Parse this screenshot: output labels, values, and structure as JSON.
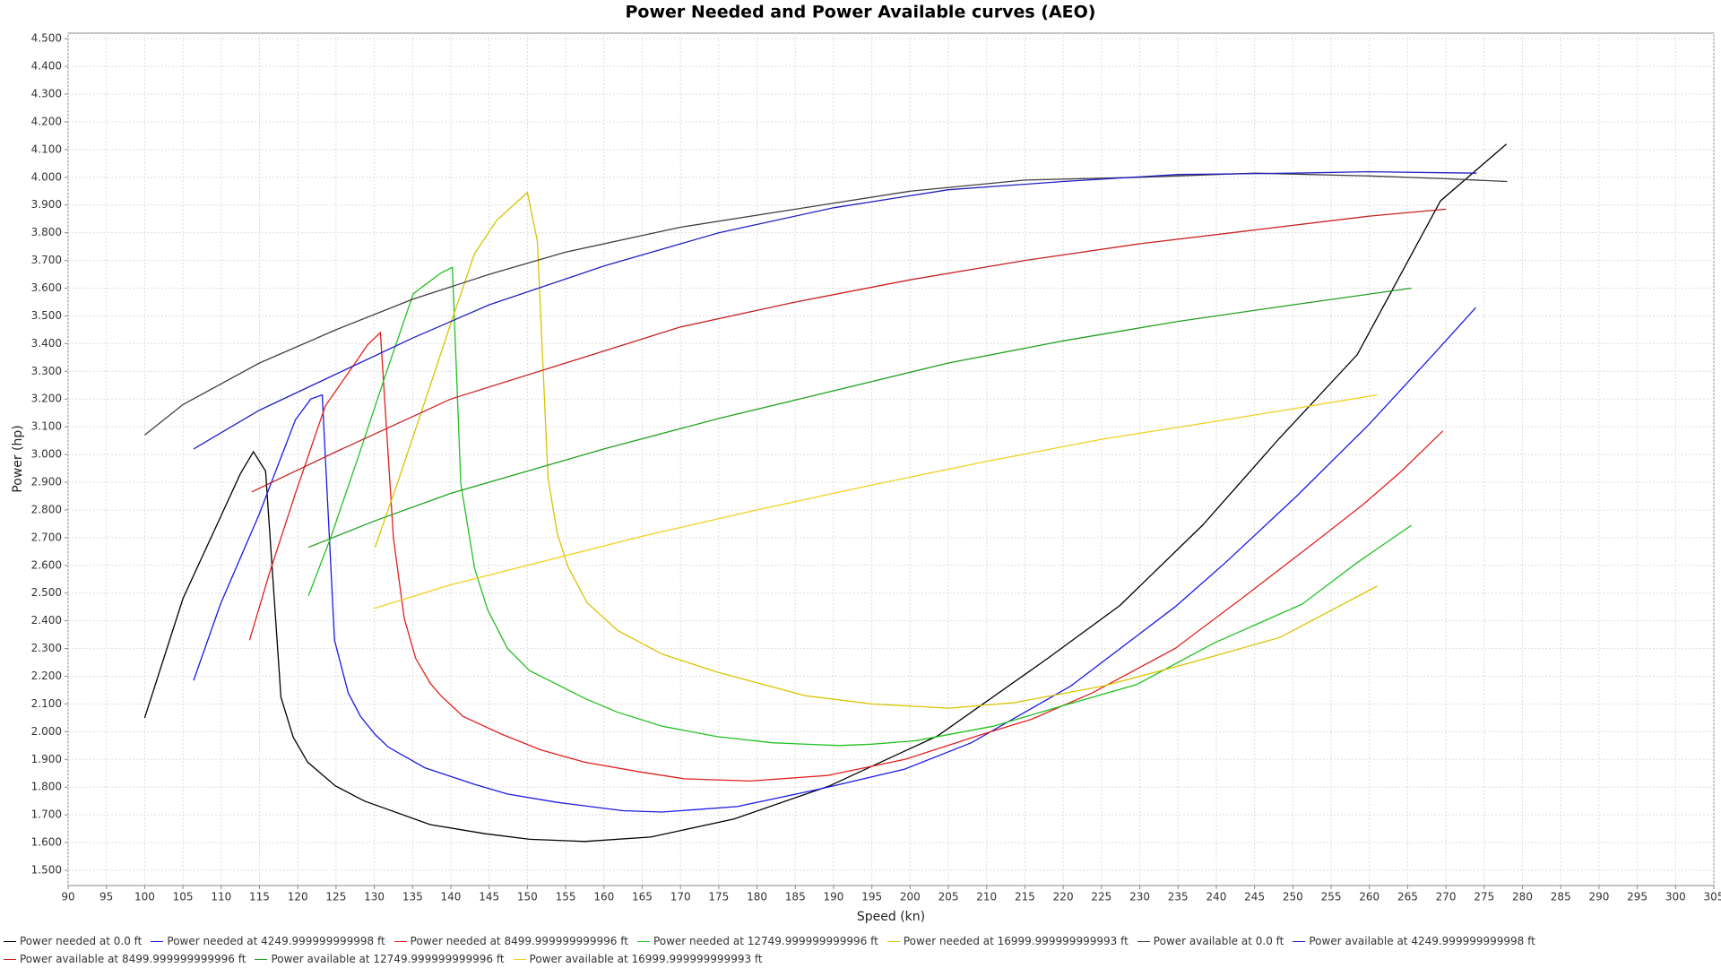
{
  "chart_data": {
    "type": "line",
    "title": "Power Needed and Power Available curves (AEO)",
    "x_label": "Speed (kn)",
    "y_label": "Power (hp)",
    "xlim": [
      90,
      305
    ],
    "ylim": [
      1445,
      4520
    ],
    "xticks": [
      90,
      95,
      100,
      105,
      110,
      115,
      120,
      125,
      130,
      135,
      140,
      145,
      150,
      155,
      160,
      165,
      170,
      175,
      180,
      185,
      190,
      195,
      200,
      205,
      210,
      215,
      220,
      225,
      230,
      235,
      240,
      245,
      250,
      255,
      260,
      265,
      270,
      275,
      280,
      285,
      290,
      295,
      300,
      305
    ],
    "yticks": [
      {
        "value": 1500,
        "label": "1.500"
      },
      {
        "value": 1600,
        "label": "1.600"
      },
      {
        "value": 1700,
        "label": "1.700"
      },
      {
        "value": 1800,
        "label": "1.800"
      },
      {
        "value": 1900,
        "label": "1.900"
      },
      {
        "value": 2000,
        "label": "2.000"
      },
      {
        "value": 2100,
        "label": "2.100"
      },
      {
        "value": 2200,
        "label": "2.200"
      },
      {
        "value": 2300,
        "label": "2.300"
      },
      {
        "value": 2400,
        "label": "2.400"
      },
      {
        "value": 2500,
        "label": "2.500"
      },
      {
        "value": 2600,
        "label": "2.600"
      },
      {
        "value": 2700,
        "label": "2.700"
      },
      {
        "value": 2800,
        "label": "2.800"
      },
      {
        "value": 2900,
        "label": "2.900"
      },
      {
        "value": 3000,
        "label": "3.000"
      },
      {
        "value": 3100,
        "label": "3.100"
      },
      {
        "value": 3200,
        "label": "3.200"
      },
      {
        "value": 3300,
        "label": "3.300"
      },
      {
        "value": 3400,
        "label": "3.400"
      },
      {
        "value": 3500,
        "label": "3.500"
      },
      {
        "value": 3600,
        "label": "3.600"
      },
      {
        "value": 3700,
        "label": "3.700"
      },
      {
        "value": 3800,
        "label": "3.800"
      },
      {
        "value": 3900,
        "label": "3.900"
      },
      {
        "value": 4000,
        "label": "4.000"
      },
      {
        "value": 4100,
        "label": "4.100"
      },
      {
        "value": 4200,
        "label": "4.200"
      },
      {
        "value": 4300,
        "label": "4.300"
      },
      {
        "value": 4400,
        "label": "4.400"
      },
      {
        "value": 4500,
        "label": "4.500"
      }
    ],
    "grid": true,
    "legend": "bottom",
    "series": [
      {
        "name": "Power needed at 0.0 ft",
        "color": "#000000",
        "x": [
          100,
          105,
          110,
          112.5,
          114.2,
          115.8,
          117.8,
          119.4,
          121.3,
          124.9,
          128.7,
          137.3,
          144.5,
          150.3,
          157.5,
          166.1,
          177,
          189.5,
          203.6,
          218,
          227.4,
          238.2,
          248.3,
          258.4,
          269.3,
          277.9
        ],
        "values": [
          2050,
          2480,
          2780,
          2930,
          3010,
          2940,
          2125,
          1980,
          1890,
          1805,
          1750,
          1665,
          1632,
          1612,
          1604,
          1620,
          1685,
          1805,
          1985,
          2265,
          2455,
          2745,
          3060,
          3360,
          3915,
          4120
        ]
      },
      {
        "name": "Power needed at 4249.999999999998 ft",
        "color": "#1a1ae6",
        "x": [
          106.4,
          109.9,
          114.9,
          119.7,
          121.7,
          123.2,
          124.8,
          126.6,
          128.2,
          130.1,
          131.8,
          136.6,
          143.1,
          147.4,
          153.9,
          162.5,
          167.6,
          177.4,
          188.5,
          199.3,
          208,
          221,
          234.6,
          241.2,
          250.5,
          260,
          268.5,
          273.9
        ],
        "values": [
          2185,
          2460,
          2780,
          3125,
          3200,
          3215,
          2330,
          2140,
          2055,
          1990,
          1945,
          1870,
          1810,
          1775,
          1745,
          1715,
          1710,
          1730,
          1795,
          1865,
          1960,
          2165,
          2450,
          2610,
          2850,
          3110,
          3365,
          3530
        ]
      },
      {
        "name": "Power needed at 8499.999999999996 ft",
        "color": "#e02020",
        "x": [
          113.7,
          116.4,
          119.7,
          123.6,
          127.5,
          129.1,
          130.8,
          132.5,
          133.9,
          135.4,
          137.3,
          138.7,
          141.6,
          146.7,
          151.7,
          157.5,
          164.7,
          170.5,
          179.1,
          189.2,
          199.3,
          209.4,
          215.9,
          223.8,
          234.6,
          243.3,
          252.7,
          259.2,
          264.2,
          269.6
        ],
        "values": [
          2330,
          2580,
          2860,
          3175,
          3330,
          3395,
          3440,
          2700,
          2410,
          2265,
          2175,
          2130,
          2055,
          1990,
          1935,
          1890,
          1855,
          1830,
          1822,
          1842,
          1900,
          1990,
          2045,
          2140,
          2300,
          2480,
          2680,
          2820,
          2940,
          3085
        ]
      },
      {
        "name": "Power needed at 12749.999999999996 ft",
        "color": "#22c022",
        "x": [
          121.4,
          124.3,
          127.9,
          131.5,
          135.1,
          138.7,
          140.2,
          141.3,
          143.1,
          144.8,
          147.4,
          150.3,
          153.2,
          157.5,
          161.8,
          167.6,
          174.8,
          182,
          190.7,
          195,
          200.8,
          210.9,
          219.5,
          229.6,
          239.7,
          251.2,
          258.4,
          265.5
        ],
        "values": [
          2490,
          2700,
          2990,
          3290,
          3580,
          3655,
          3675,
          2895,
          2590,
          2440,
          2300,
          2220,
          2180,
          2120,
          2070,
          2020,
          1982,
          1960,
          1950,
          1955,
          1968,
          2020,
          2090,
          2170,
          2320,
          2460,
          2610,
          2745
        ]
      },
      {
        "name": "Power needed at 16999.999999999993 ft",
        "color": "#d9c400",
        "x": [
          130.1,
          133,
          136.6,
          140.2,
          143.1,
          146,
          148.8,
          150,
          151.3,
          152.7,
          153.9,
          155.3,
          157.8,
          161.8,
          167.6,
          174.8,
          186.3,
          195,
          205.1,
          213.7,
          225.3,
          236.8,
          248.3,
          261
        ],
        "values": [
          2665,
          2895,
          3190,
          3490,
          3725,
          3845,
          3915,
          3945,
          3770,
          2915,
          2715,
          2595,
          2465,
          2365,
          2280,
          2215,
          2130,
          2100,
          2085,
          2105,
          2165,
          2250,
          2340,
          2525
        ]
      },
      {
        "name": "Power available at 0.0 ft",
        "color": "#404040",
        "x": [
          100,
          105,
          115,
          125,
          135,
          145,
          155,
          170,
          185,
          200,
          215,
          230,
          245,
          260,
          270,
          278
        ],
        "values": [
          3070,
          3180,
          3330,
          3450,
          3560,
          3650,
          3730,
          3820,
          3885,
          3950,
          3990,
          4000,
          4015,
          4005,
          3995,
          3985
        ]
      },
      {
        "name": "Power available at 4249.999999999998 ft",
        "color": "#2020c0",
        "x": [
          106.4,
          115,
          125,
          135,
          145,
          160,
          175,
          190,
          205,
          220,
          235,
          250,
          260,
          274
        ],
        "values": [
          3020,
          3160,
          3290,
          3420,
          3540,
          3680,
          3800,
          3890,
          3955,
          3985,
          4010,
          4015,
          4020,
          4015
        ]
      },
      {
        "name": "Power available at 8499.999999999996 ft",
        "color": "#c82020",
        "x": [
          114,
          125,
          140,
          155,
          170,
          185,
          200,
          215,
          230,
          245,
          260,
          270
        ],
        "values": [
          2865,
          3010,
          3200,
          3330,
          3460,
          3550,
          3630,
          3700,
          3760,
          3810,
          3860,
          3885
        ]
      },
      {
        "name": "Power available at 12749.999999999996 ft",
        "color": "#20a020",
        "x": [
          121.4,
          130,
          140,
          150,
          160,
          175,
          190,
          205,
          220,
          235,
          250,
          265.5
        ],
        "values": [
          2665,
          2760,
          2860,
          2940,
          3020,
          3130,
          3230,
          3330,
          3410,
          3480,
          3540,
          3600
        ]
      },
      {
        "name": "Power available at 16999.999999999993 ft",
        "color": "#f0d020",
        "x": [
          130,
          140,
          150,
          165,
          180,
          195,
          210,
          225,
          240,
          250,
          261
        ],
        "values": [
          2445,
          2530,
          2600,
          2705,
          2800,
          2890,
          2975,
          3055,
          3120,
          3165,
          3215
        ]
      }
    ]
  }
}
